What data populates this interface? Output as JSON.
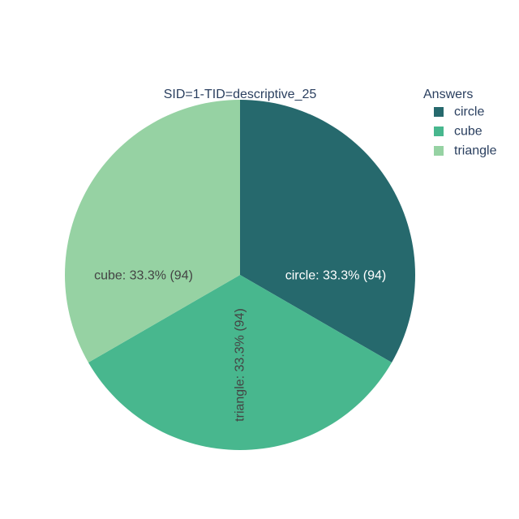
{
  "chart_data": {
    "type": "pie",
    "title": "SID=1-TID=descriptive_25",
    "legend": {
      "title": "Answers",
      "placement": "top-right"
    },
    "categories": [
      "circle",
      "cube",
      "triangle"
    ],
    "values": [
      94,
      94,
      94
    ],
    "colors": [
      "#26696D",
      "#48B78E",
      "#96D2A3"
    ],
    "label_colors": [
      "#ffffff",
      "#444444",
      "#444444"
    ],
    "slice_labels": [
      "circle: 33.3% (94)",
      "cube: 33.3% (94)",
      "triangle: 33.3% (94)"
    ]
  }
}
